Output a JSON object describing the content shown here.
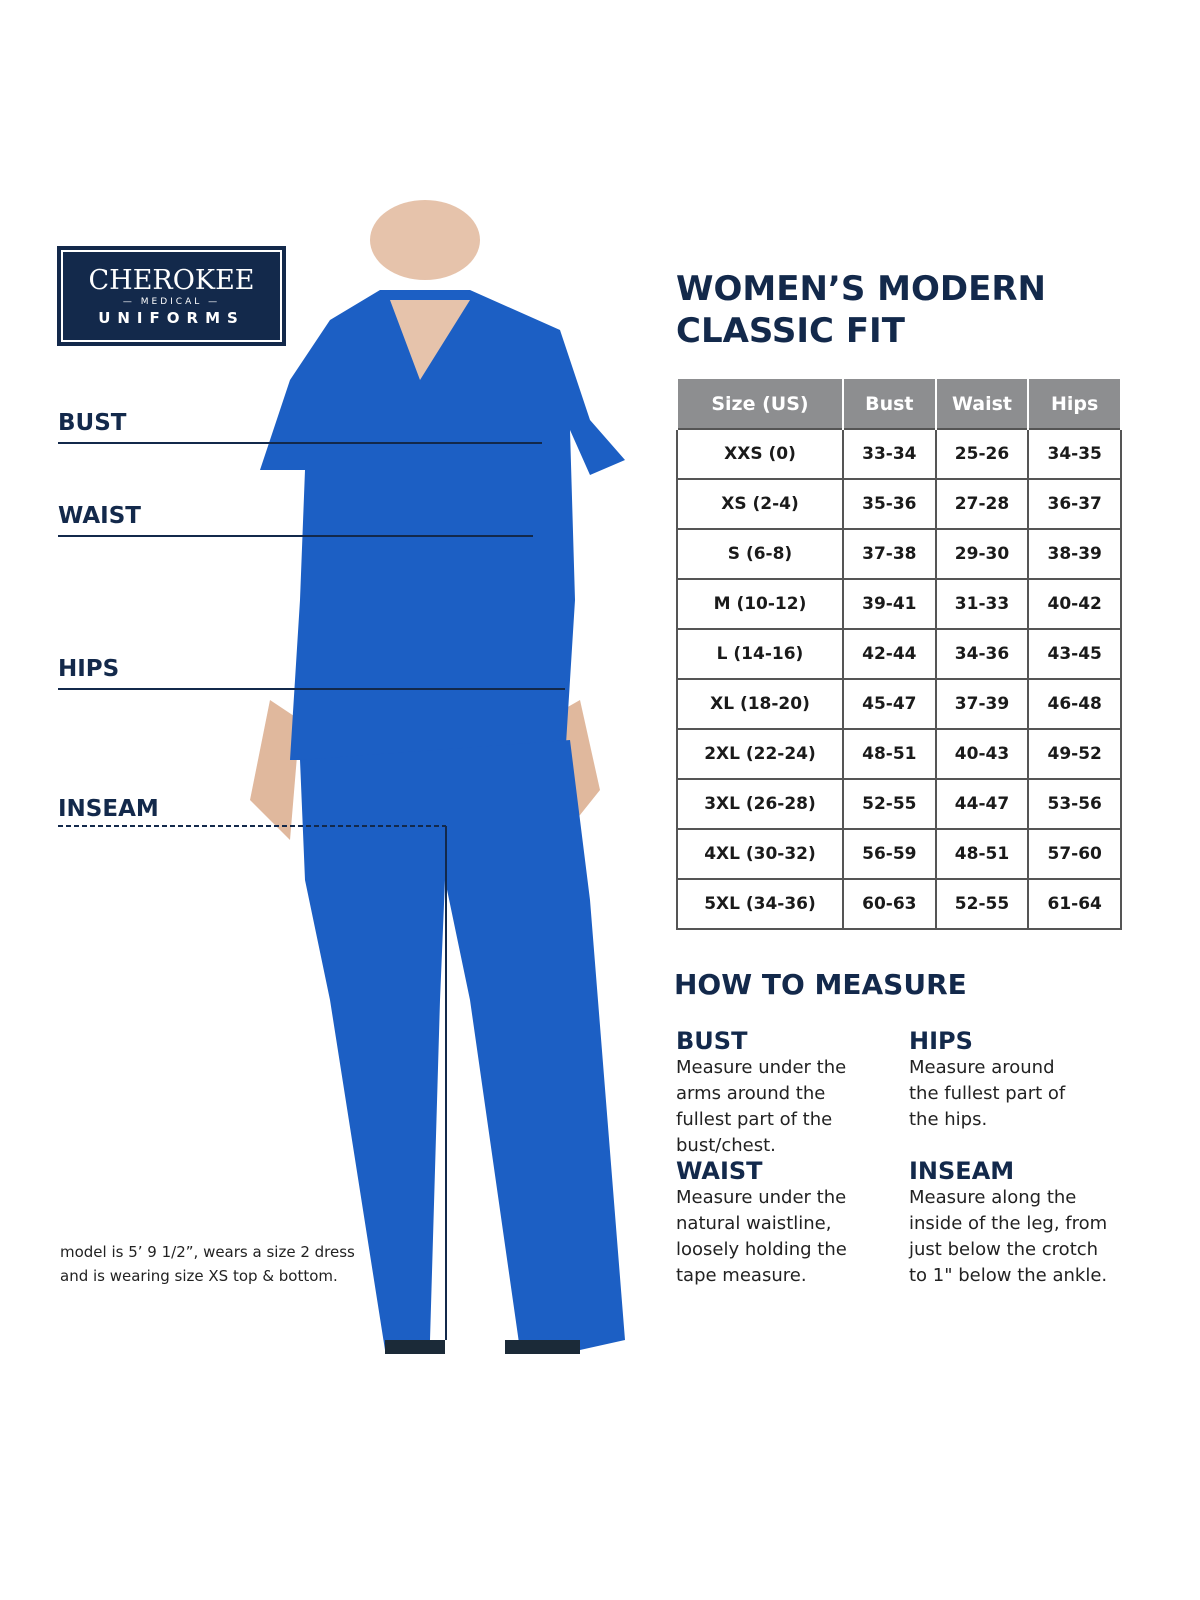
{
  "logo": {
    "line1": "CHEROKEE",
    "line2": "— MEDICAL —",
    "line3": "UNIFORMS"
  },
  "measure_labels": {
    "bust": "BUST",
    "waist": "WAIST",
    "hips": "HIPS",
    "inseam": "INSEAM"
  },
  "title": {
    "line1": "WOMEN’S MODERN",
    "line2": "CLASSIC FIT"
  },
  "table": {
    "headers": [
      "Size (US)",
      "Bust",
      "Waist",
      "Hips"
    ],
    "rows": [
      [
        "XXS (0)",
        "33-34",
        "25-26",
        "34-35"
      ],
      [
        "XS (2-4)",
        "35-36",
        "27-28",
        "36-37"
      ],
      [
        "S (6-8)",
        "37-38",
        "29-30",
        "38-39"
      ],
      [
        "M (10-12)",
        "39-41",
        "31-33",
        "40-42"
      ],
      [
        "L (14-16)",
        "42-44",
        "34-36",
        "43-45"
      ],
      [
        "XL (18-20)",
        "45-47",
        "37-39",
        "46-48"
      ],
      [
        "2XL (22-24)",
        "48-51",
        "40-43",
        "49-52"
      ],
      [
        "3XL (26-28)",
        "52-55",
        "44-47",
        "53-56"
      ],
      [
        "4XL (30-32)",
        "56-59",
        "48-51",
        "57-60"
      ],
      [
        "5XL (34-36)",
        "60-63",
        "52-55",
        "61-64"
      ]
    ]
  },
  "how_to": {
    "title": "HOW TO MEASURE",
    "items": [
      {
        "title": "BUST",
        "text": "Measure under the arms around the fullest part of the bust/chest."
      },
      {
        "title": "HIPS",
        "text": "Measure around the fullest part of the hips."
      },
      {
        "title": "WAIST",
        "text": "Measure under the natural waistline, loosely holding the tape measure."
      },
      {
        "title": "INSEAM",
        "text": "Measure along the inside of the leg, from just below the crotch to 1\" below the ankle."
      }
    ]
  },
  "note": {
    "line1": "model is 5’ 9 1/2”, wears a size 2 dress",
    "line2": "and is wearing size XS top & bottom."
  },
  "colors": {
    "navy": "#13294b",
    "scrub_blue": "#1c5fc4",
    "header_gray": "#8d8e90"
  }
}
